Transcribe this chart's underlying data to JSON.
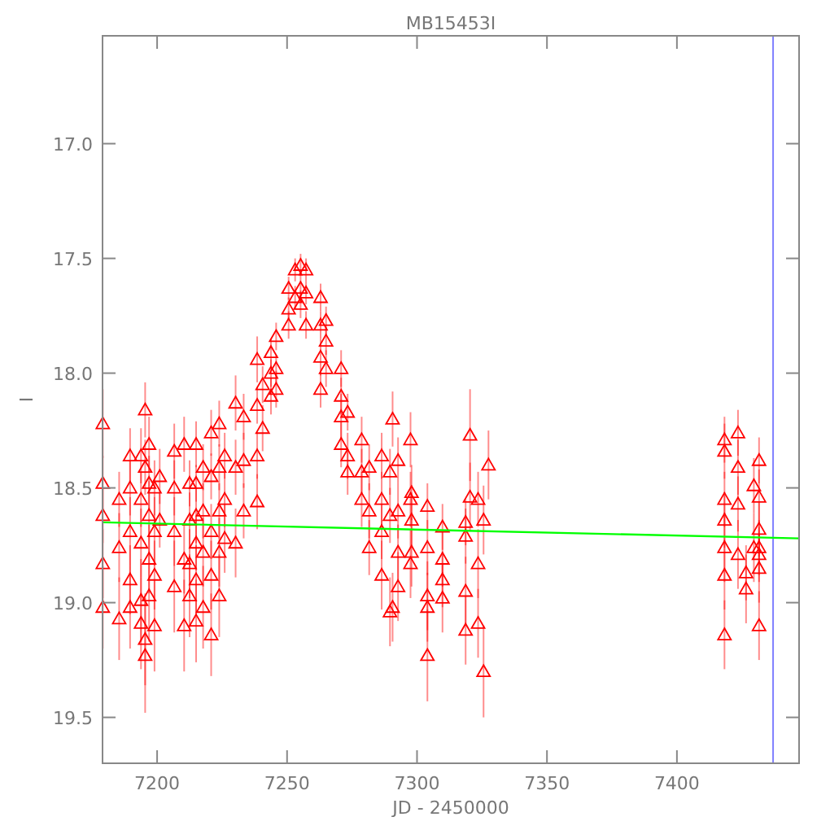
{
  "chart_data": {
    "type": "scatter",
    "title": "MB15453I",
    "xlabel": "JD - 2450000",
    "ylabel": "I",
    "grid": false,
    "xlim": [
      7179,
      7447
    ],
    "ylim": [
      19.7,
      16.53
    ],
    "xticks": [
      7200,
      7250,
      7300,
      7350,
      7400
    ],
    "yticks": [
      {
        "value": 17,
        "label": "17.0"
      },
      17.5,
      {
        "value": 18,
        "label": "18.0"
      },
      18.5,
      {
        "value": 19,
        "label": "19.0"
      },
      19.5
    ],
    "ref_lines": [
      {
        "axis": "x",
        "value": 7437,
        "color": "#8080ff"
      }
    ],
    "series": [
      {
        "color": "#ff0000",
        "marker": "triangle",
        "x": [
          7179.1,
          7179.1,
          7179.1,
          7179.1,
          7179.1,
          7185.4,
          7185.4,
          7185.4,
          7189.6,
          7189.6,
          7189.6,
          7189.6,
          7189.6,
          7193.8,
          7193.8,
          7193.8,
          7193.8,
          7193.8,
          7195.4,
          7195.4,
          7195.4,
          7195.4,
          7196.9,
          7196.9,
          7196.9,
          7196.9,
          7196.9,
          7199,
          7199,
          7199,
          7199,
          7201,
          7201,
          7206.6,
          7206.6,
          7206.6,
          7206.6,
          7210.4,
          7210.4,
          7210.4,
          7212.5,
          7212.5,
          7212.5,
          7212.5,
          7215,
          7215,
          7215,
          7215,
          7215,
          7215,
          7217.7,
          7217.7,
          7217.7,
          7217.7,
          7220.8,
          7220.8,
          7220.8,
          7220.8,
          7220.8,
          7223.9,
          7223.9,
          7223.9,
          7223.9,
          7223.9,
          7226,
          7226,
          7226,
          7230.2,
          7230.2,
          7230.2,
          7233.3,
          7233.3,
          7233.3,
          7238.5,
          7238.5,
          7238.5,
          7238.5,
          7240.6,
          7240.6,
          7243.8,
          7243.8,
          7243.8,
          7245.8,
          7245.8,
          7245.8,
          7250.6,
          7250.6,
          7250.6,
          7253.1,
          7253.1,
          7255.2,
          7255.2,
          7255.2,
          7257.3,
          7257.3,
          7257.3,
          7262.9,
          7262.9,
          7262.9,
          7262.9,
          7265,
          7265,
          7265,
          7270.8,
          7270.8,
          7270.8,
          7270.8,
          7273.3,
          7273.3,
          7273.3,
          7278.7,
          7278.7,
          7278.7,
          7281.6,
          7281.6,
          7281.6,
          7286.4,
          7286.4,
          7286.4,
          7286.4,
          7289.6,
          7289.6,
          7289.6,
          7290.6,
          7290.6,
          7292.7,
          7292.7,
          7292.7,
          7292.7,
          7297.5,
          7297.5,
          7297.5,
          7297.9,
          7297.9,
          7297.9,
          7304,
          7304,
          7304,
          7304,
          7304,
          7309.8,
          7309.8,
          7309.8,
          7309.8,
          7318.7,
          7318.7,
          7318.7,
          7318.7,
          7320.4,
          7320.4,
          7323.5,
          7323.5,
          7323.5,
          7325.6,
          7325.6,
          7327.5,
          7418.3,
          7418.3,
          7418.3,
          7418.3,
          7418.3,
          7418.3,
          7418.3,
          7423.5,
          7423.5,
          7423.5,
          7423.5,
          7426.6,
          7426.6,
          7429.6,
          7429.6,
          7431.6,
          7431.6,
          7431.6,
          7431.6,
          7431.6,
          7431.6,
          7431.6
        ],
        "values": [
          18.22,
          18.48,
          18.62,
          18.83,
          19.02,
          18.55,
          18.76,
          19.07,
          18.36,
          18.5,
          18.69,
          18.9,
          19.02,
          18.36,
          18.55,
          18.74,
          18.99,
          19.09,
          18.16,
          18.41,
          19.16,
          19.23,
          18.31,
          18.48,
          18.62,
          18.81,
          18.97,
          18.5,
          18.69,
          18.88,
          19.1,
          18.45,
          18.64,
          18.34,
          18.5,
          18.69,
          18.93,
          18.31,
          18.81,
          19.1,
          18.48,
          18.64,
          18.83,
          18.97,
          18.31,
          18.48,
          18.62,
          18.74,
          18.9,
          19.08,
          18.41,
          18.6,
          18.78,
          19.02,
          18.26,
          18.45,
          18.69,
          18.88,
          19.14,
          18.22,
          18.41,
          18.6,
          18.78,
          18.97,
          18.36,
          18.55,
          18.72,
          18.13,
          18.41,
          18.74,
          18.19,
          18.38,
          18.6,
          17.94,
          18.14,
          18.36,
          18.56,
          18.05,
          18.24,
          17.91,
          18,
          18.1,
          17.84,
          17.98,
          18.07,
          17.63,
          17.72,
          17.79,
          17.55,
          17.67,
          17.53,
          17.63,
          17.7,
          17.55,
          17.65,
          17.79,
          17.67,
          17.79,
          17.93,
          18.07,
          17.77,
          17.86,
          17.98,
          17.98,
          18.1,
          18.19,
          18.31,
          18.17,
          18.36,
          18.43,
          18.29,
          18.43,
          18.55,
          18.41,
          18.6,
          18.76,
          18.36,
          18.55,
          18.69,
          18.88,
          18.43,
          18.62,
          19.04,
          18.2,
          19.02,
          18.38,
          18.6,
          18.78,
          18.93,
          18.29,
          18.55,
          18.83,
          18.52,
          18.64,
          18.78,
          18.58,
          18.76,
          18.97,
          19.02,
          19.23,
          18.67,
          18.81,
          18.9,
          18.98,
          18.65,
          18.71,
          18.95,
          19.12,
          18.27,
          18.54,
          18.55,
          18.83,
          19.09,
          18.64,
          19.3,
          18.4,
          18.29,
          18.34,
          18.55,
          18.64,
          18.76,
          18.88,
          19.14,
          18.26,
          18.41,
          18.57,
          18.79,
          18.87,
          18.94,
          18.49,
          18.76,
          18.38,
          18.54,
          18.68,
          18.76,
          18.79,
          18.85,
          19.1
        ],
        "errors": [
          0.15,
          0.12,
          0.12,
          0.15,
          0.18,
          0.12,
          0.15,
          0.18,
          0.12,
          0.12,
          0.15,
          0.15,
          0.18,
          0.12,
          0.12,
          0.15,
          0.18,
          0.2,
          0.12,
          0.12,
          0.2,
          0.25,
          0.12,
          0.12,
          0.15,
          0.15,
          0.2,
          0.12,
          0.15,
          0.15,
          0.2,
          0.12,
          0.12,
          0.12,
          0.12,
          0.15,
          0.2,
          0.12,
          0.15,
          0.2,
          0.1,
          0.12,
          0.15,
          0.18,
          0.1,
          0.08,
          0.12,
          0.12,
          0.15,
          0.18,
          0.1,
          0.12,
          0.15,
          0.18,
          0.1,
          0.1,
          0.12,
          0.15,
          0.18,
          0.1,
          0.1,
          0.12,
          0.15,
          0.18,
          0.1,
          0.12,
          0.15,
          0.12,
          0.12,
          0.15,
          0.1,
          0.12,
          0.12,
          0.1,
          0.08,
          0.1,
          0.12,
          0.08,
          0.1,
          0.06,
          0.06,
          0.08,
          0.06,
          0.06,
          0.08,
          0.05,
          0.05,
          0.06,
          0.05,
          0.05,
          0.05,
          0.05,
          0.06,
          0.05,
          0.05,
          0.06,
          0.06,
          0.06,
          0.08,
          0.08,
          0.06,
          0.06,
          0.08,
          0.08,
          0.08,
          0.1,
          0.1,
          0.08,
          0.1,
          0.1,
          0.1,
          0.1,
          0.12,
          0.1,
          0.12,
          0.12,
          0.1,
          0.12,
          0.12,
          0.15,
          0.1,
          0.12,
          0.15,
          0.12,
          0.15,
          0.1,
          0.12,
          0.12,
          0.15,
          0.12,
          0.12,
          0.15,
          0.12,
          0.12,
          0.15,
          0.1,
          0.12,
          0.15,
          0.15,
          0.2,
          0.1,
          0.12,
          0.12,
          0.15,
          0.1,
          0.12,
          0.15,
          0.15,
          0.2,
          0.15,
          0.12,
          0.15,
          0.15,
          0.15,
          0.2,
          0.15,
          0.1,
          0.12,
          0.12,
          0.12,
          0.15,
          0.15,
          0.15,
          0.1,
          0.12,
          0.12,
          0.15,
          0.12,
          0.15,
          0.12,
          0.15,
          0.1,
          0.12,
          0.12,
          0.12,
          0.12,
          0.15,
          0.15
        ]
      },
      {
        "type": "line",
        "color": "#00ff00",
        "x": [
          7179,
          7447
        ],
        "values": [
          18.65,
          18.72
        ]
      }
    ]
  }
}
